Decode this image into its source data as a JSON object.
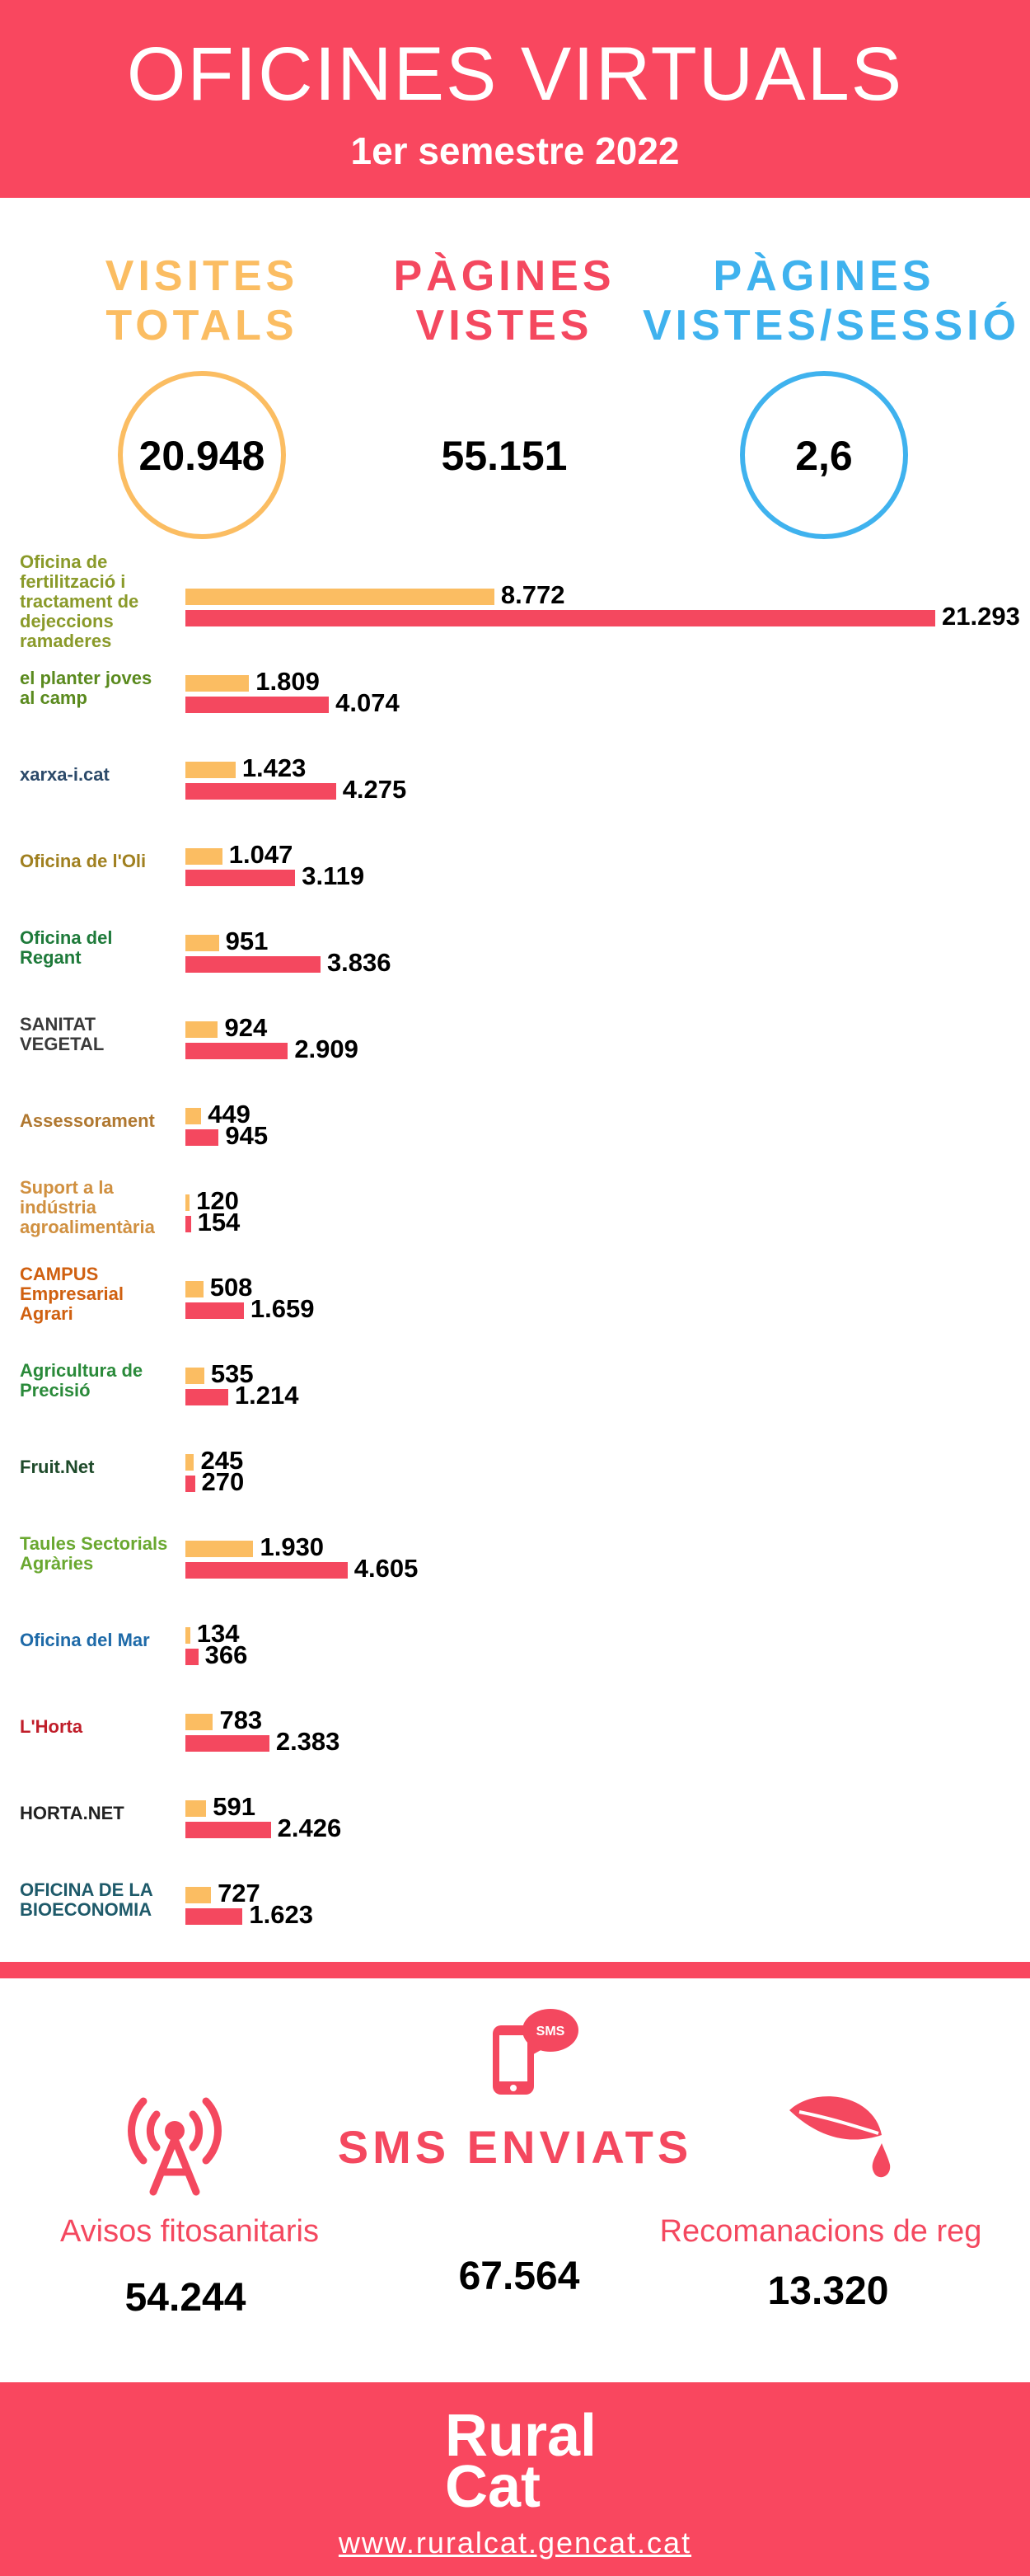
{
  "header": {
    "title": "OFICINES VIRTUALS",
    "subtitle": "1er semestre 2022"
  },
  "stats": [
    {
      "label": [
        "VISITES",
        "TOTALS"
      ],
      "value": "20.948",
      "color": "#fbbd62"
    },
    {
      "label": [
        "PÀGINES",
        "VISTES"
      ],
      "value": "55.151",
      "color": "#f4485f"
    },
    {
      "label": [
        "PÀGINES",
        "VISTES/SESSIÓ"
      ],
      "value": "2,6",
      "color": "#3fb2ee"
    }
  ],
  "chart_data": {
    "type": "bar",
    "orientation": "horizontal",
    "categories": [
      "Oficina de fertilització i tractament de dejeccions ramaderes",
      "el planter joves al camp",
      "xarxa-i.cat",
      "Oficina de l'Oli",
      "Oficina del Regant",
      "SANITAT VEGETAL",
      "Assessorament",
      "Suport a la indústria agroalimentària",
      "CAMPUS Empresarial Agrari",
      "Agricultura de Precisió",
      "Fruit.Net",
      "Taules Sectorials Agràries",
      "Oficina del Mar",
      "L'Horta",
      "HORTA.NET",
      "OFICINA DE LA BIOECONOMIA"
    ],
    "series": [
      {
        "color": "#fbbd62",
        "values": [
          8772,
          1809,
          1423,
          1047,
          951,
          924,
          449,
          120,
          508,
          535,
          245,
          1930,
          134,
          783,
          591,
          727
        ],
        "value_labels": [
          "8.772",
          "1.809",
          "1.423",
          "1.047",
          "951",
          "924",
          "449",
          "120",
          "508",
          "535",
          "245",
          "1.930",
          "134",
          "783",
          "591",
          "727"
        ]
      },
      {
        "color": "#f4485f",
        "values": [
          21293,
          4074,
          4275,
          3119,
          3836,
          2909,
          945,
          154,
          1659,
          1214,
          270,
          4605,
          366,
          2383,
          2426,
          1623
        ],
        "value_labels": [
          "21.293",
          "4.074",
          "4.275",
          "3.119",
          "3.836",
          "2.909",
          "945",
          "154",
          "1.659",
          "1.214",
          "270",
          "4.605",
          "366",
          "2.383",
          "2.426",
          "1.623"
        ]
      }
    ]
  },
  "sms": {
    "title": "SMS ENVIATS",
    "total": "67.564",
    "icon_label": "SMS",
    "items": [
      {
        "label": "Avisos fitosanitaris",
        "value": "54.244"
      },
      {
        "label": "Recomanacions de reg",
        "value": "13.320"
      }
    ]
  },
  "footer": {
    "brand": [
      "Rural",
      "Cat"
    ],
    "url": "www.ruralcat.gencat.cat"
  }
}
